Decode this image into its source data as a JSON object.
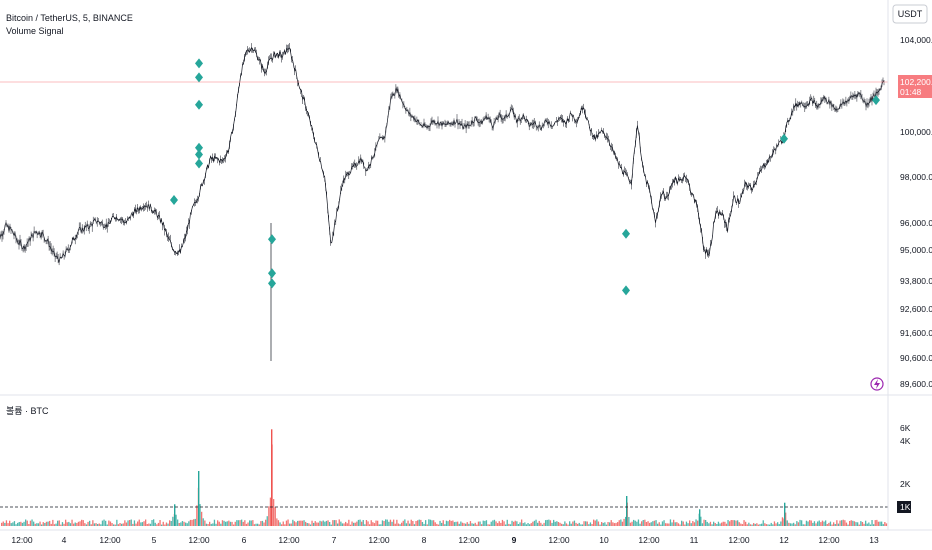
{
  "header": {
    "symbol_line": "Bitcoin / TetherUS, 5, BINANCE",
    "indicator": "Volume Signal",
    "volume_label": "볼륨 · BTC"
  },
  "currency_button": "USDT",
  "price_tag": {
    "price": "102,200.00",
    "countdown": "01:48"
  },
  "volume_tag": "1K",
  "colors": {
    "up": "#26a69a",
    "down": "#ef5350",
    "signal": "#26a69a",
    "price_line": "#131722",
    "tag": "#f77c80"
  },
  "chart_data": [
    {
      "type": "line",
      "series": [
        {
          "values": [
            95500,
            95900,
            95700,
            95300,
            95100,
            95400,
            95700,
            95600,
            95300,
            94800,
            94600,
            94900,
            95300,
            95700,
            95800,
            95900,
            96100,
            96000,
            95900,
            96300,
            96200,
            96000,
            96400,
            96600,
            96800,
            96700,
            96400,
            96000,
            95400,
            95000,
            94900,
            95600,
            96600,
            97200,
            98000,
            98800,
            98800,
            98700,
            99200,
            100500,
            102500,
            103500,
            103700,
            103200,
            102600,
            103200,
            103400,
            103300,
            103700,
            102800,
            101800,
            101000,
            100000,
            99000,
            98000,
            95200,
            96400,
            97800,
            98200,
            98500,
            98800,
            98300,
            98900,
            99600,
            99800,
            101500,
            101900,
            101300,
            100800,
            100600,
            100300,
            100200,
            100500,
            100400,
            100300,
            100400,
            100500,
            100200,
            100300,
            100600,
            100400,
            100700,
            100300,
            100700,
            100600,
            101000,
            100500,
            100700,
            100300,
            100400,
            100200,
            100500,
            100300,
            100600,
            100400,
            100800,
            100500,
            101200,
            100200,
            99700,
            100000,
            99800,
            99100,
            98500,
            98100,
            97800,
            100400,
            98200,
            97400,
            96000,
            97300,
            97100,
            97900,
            97800,
            98100,
            97300,
            96700,
            95000,
            94900,
            96400,
            96400,
            95800,
            97100,
            96900,
            97700,
            97500,
            98000,
            98500,
            98800,
            99300,
            99600,
            100400,
            101100,
            101300,
            101200,
            101400,
            101100,
            101500,
            101300,
            101000,
            101200,
            101400,
            101600,
            101700,
            101200,
            101500,
            101700,
            102300
          ]
        }
      ],
      "candlestick": true,
      "signals": [
        {
          "x": "5 12:00",
          "y": 103000
        },
        {
          "x": "5 12:00",
          "y": 102400
        },
        {
          "x": "5 12:00",
          "y": 101200
        },
        {
          "x": "5 12:00",
          "y": 99300
        },
        {
          "x": "5 12:00",
          "y": 99000
        },
        {
          "x": "5 12:00",
          "y": 98600
        },
        {
          "x": "5",
          "y": 97000
        },
        {
          "x": "6 12:00",
          "y": 95400
        },
        {
          "x": "6 12:00",
          "y": 94100
        },
        {
          "x": "6 12:00",
          "y": 93700
        },
        {
          "x": "10 12:00",
          "y": 95600
        },
        {
          "x": "10 12:00",
          "y": 93400
        },
        {
          "x": "12",
          "y": 99700
        },
        {
          "x": "13",
          "y": 101400
        }
      ],
      "y_ticks": [
        "104,000.00",
        "102,200.00",
        "100,000.00",
        "98,000.00",
        "96,000.00",
        "95,000.00",
        "93,800.00",
        "92,600.00",
        "91,600.00",
        "90,600.00",
        "89,600.00"
      ],
      "ylim": [
        89600,
        104300
      ],
      "last_price": 102200
    },
    {
      "type": "bar",
      "series": [
        {
          "name": "볼륨 · BTC"
        }
      ],
      "y_ticks": [
        "6K",
        "4K",
        "2K"
      ],
      "ylim": [
        0,
        6000
      ],
      "threshold": 1000,
      "spikes": [
        {
          "x": "5",
          "value": 1300
        },
        {
          "x": "5 12:00",
          "value": 3300
        },
        {
          "x": "6 12:00",
          "value": 5800
        },
        {
          "x": "10 12:00",
          "value": 1800
        },
        {
          "x": "11 12:00",
          "value": 1000
        },
        {
          "x": "12 12:00",
          "value": 1400
        }
      ]
    }
  ],
  "x_ticks": [
    "12:00",
    "4",
    "12:00",
    "5",
    "12:00",
    "6",
    "12:00",
    "7",
    "12:00",
    "8",
    "12:00",
    "9",
    "12:00",
    "10",
    "12:00",
    "11",
    "12:00",
    "12",
    "12:00",
    "13"
  ],
  "x_tick_bold": "9"
}
